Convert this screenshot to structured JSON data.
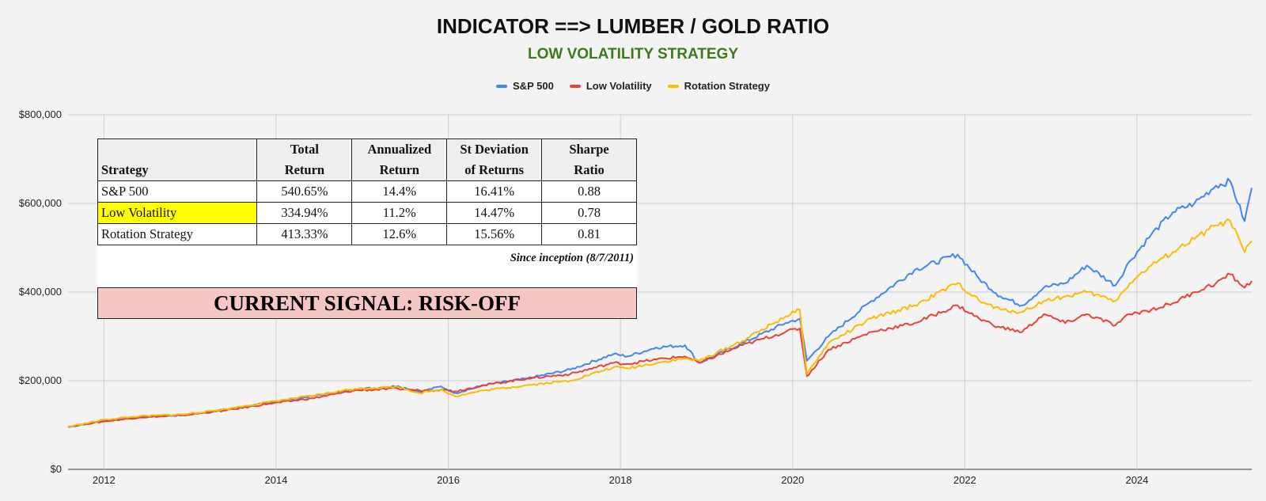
{
  "chart_data": {
    "type": "line",
    "title": "INDICATOR ==> LUMBER / GOLD RATIO",
    "subtitle": "LOW VOLATILITY STRATEGY",
    "xlabel": "",
    "ylabel": "",
    "x_ticks": [
      "2012",
      "2014",
      "2016",
      "2018",
      "2020",
      "2022",
      "2024"
    ],
    "y_ticks": [
      "$0",
      "$200,000",
      "$400,000",
      "$600,000",
      "$800,000"
    ],
    "ylim": [
      0,
      800000
    ],
    "xlim": [
      "2011-08",
      "2025-05"
    ],
    "legend_position": "top-center",
    "grid": true,
    "x": [
      "2011-08",
      "2012-01",
      "2012-06",
      "2012-12",
      "2013-06",
      "2013-12",
      "2014-06",
      "2014-12",
      "2015-06",
      "2015-09",
      "2015-12",
      "2016-02",
      "2016-06",
      "2016-12",
      "2017-06",
      "2017-12",
      "2018-02",
      "2018-06",
      "2018-10",
      "2018-12",
      "2019-06",
      "2019-12",
      "2020-02",
      "2020-03",
      "2020-06",
      "2020-12",
      "2021-06",
      "2021-12",
      "2022-03",
      "2022-06",
      "2022-09",
      "2022-12",
      "2023-03",
      "2023-06",
      "2023-10",
      "2023-12",
      "2024-03",
      "2024-06",
      "2024-09",
      "2024-12",
      "2025-02",
      "2025-04",
      "2025-05"
    ],
    "series": [
      {
        "name": "S&P 500",
        "color": "#4285f4",
        "values": [
          95000,
          110000,
          118000,
          122000,
          135000,
          150000,
          165000,
          180000,
          188000,
          175000,
          187000,
          172000,
          190000,
          205000,
          225000,
          260000,
          255000,
          275000,
          280000,
          240000,
          285000,
          330000,
          340000,
          245000,
          300000,
          380000,
          450000,
          485000,
          430000,
          390000,
          370000,
          410000,
          420000,
          460000,
          415000,
          470000,
          530000,
          580000,
          600000,
          640000,
          650000,
          560000,
          635000
        ]
      },
      {
        "name": "Low Volatility",
        "color": "#ea4335",
        "values": [
          97000,
          108000,
          117000,
          122000,
          133000,
          148000,
          160000,
          178000,
          182000,
          178000,
          180000,
          176000,
          190000,
          205000,
          215000,
          240000,
          238000,
          248000,
          255000,
          240000,
          280000,
          310000,
          318000,
          210000,
          270000,
          310000,
          330000,
          370000,
          340000,
          320000,
          310000,
          350000,
          330000,
          350000,
          325000,
          350000,
          360000,
          375000,
          400000,
          420000,
          440000,
          410000,
          425000
        ]
      },
      {
        "name": "Rotation Strategy",
        "color": "#fbbc04",
        "values": [
          96000,
          112000,
          120000,
          124000,
          136000,
          152000,
          166000,
          182000,
          186000,
          172000,
          180000,
          165000,
          178000,
          190000,
          200000,
          230000,
          228000,
          240000,
          250000,
          245000,
          290000,
          345000,
          360000,
          215000,
          285000,
          340000,
          370000,
          420000,
          380000,
          360000,
          355000,
          380000,
          390000,
          400000,
          380000,
          420000,
          460000,
          490000,
          520000,
          550000,
          560000,
          490000,
          515000
        ]
      }
    ]
  },
  "table": {
    "headers": [
      [
        "",
        "Strategy"
      ],
      [
        "Total",
        "Return"
      ],
      [
        "Annualized",
        "Return"
      ],
      [
        "St Deviation",
        "of Returns"
      ],
      [
        "Sharpe",
        "Ratio"
      ]
    ],
    "rows": [
      [
        "S&P 500",
        "540.65%",
        "14.4%",
        "16.41%",
        "0.88"
      ],
      [
        "Low Volatility",
        "334.94%",
        "11.2%",
        "14.47%",
        "0.78"
      ],
      [
        "Rotation Strategy",
        "413.33%",
        "12.6%",
        "15.56%",
        "0.81"
      ]
    ],
    "highlighted_row": 1,
    "highlight_color": "#ffff00",
    "note": "Since inception (8/7/2011)"
  },
  "signal": {
    "text": "CURRENT SIGNAL: RISK-OFF",
    "color": "#f4c7c3"
  }
}
